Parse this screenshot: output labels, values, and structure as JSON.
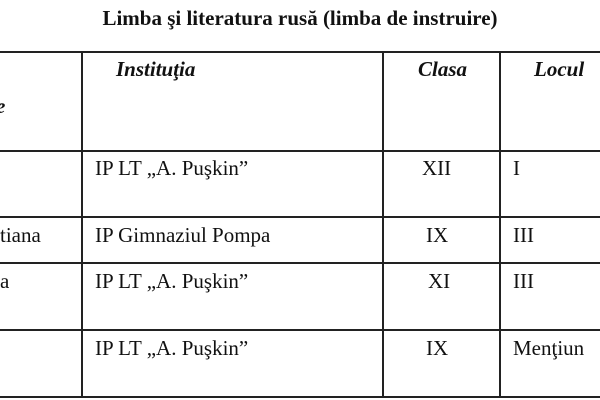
{
  "title": "Limba şi literatura rusă (limba de instruire)",
  "table": {
    "headers": [
      "e",
      "Instituţia",
      "Clasa",
      "Locul"
    ],
    "rows": [
      [
        "",
        "IP LT „A. Puşkin”",
        "XII",
        "I"
      ],
      [
        "tiana",
        "IP Gimnaziul Pompa",
        "IX",
        "III"
      ],
      [
        "a",
        "IP LT „A. Puşkin”",
        "XI",
        "III"
      ],
      [
        "",
        "IP LT „A. Puşkin”",
        "IX",
        "Menţiun"
      ]
    ]
  }
}
